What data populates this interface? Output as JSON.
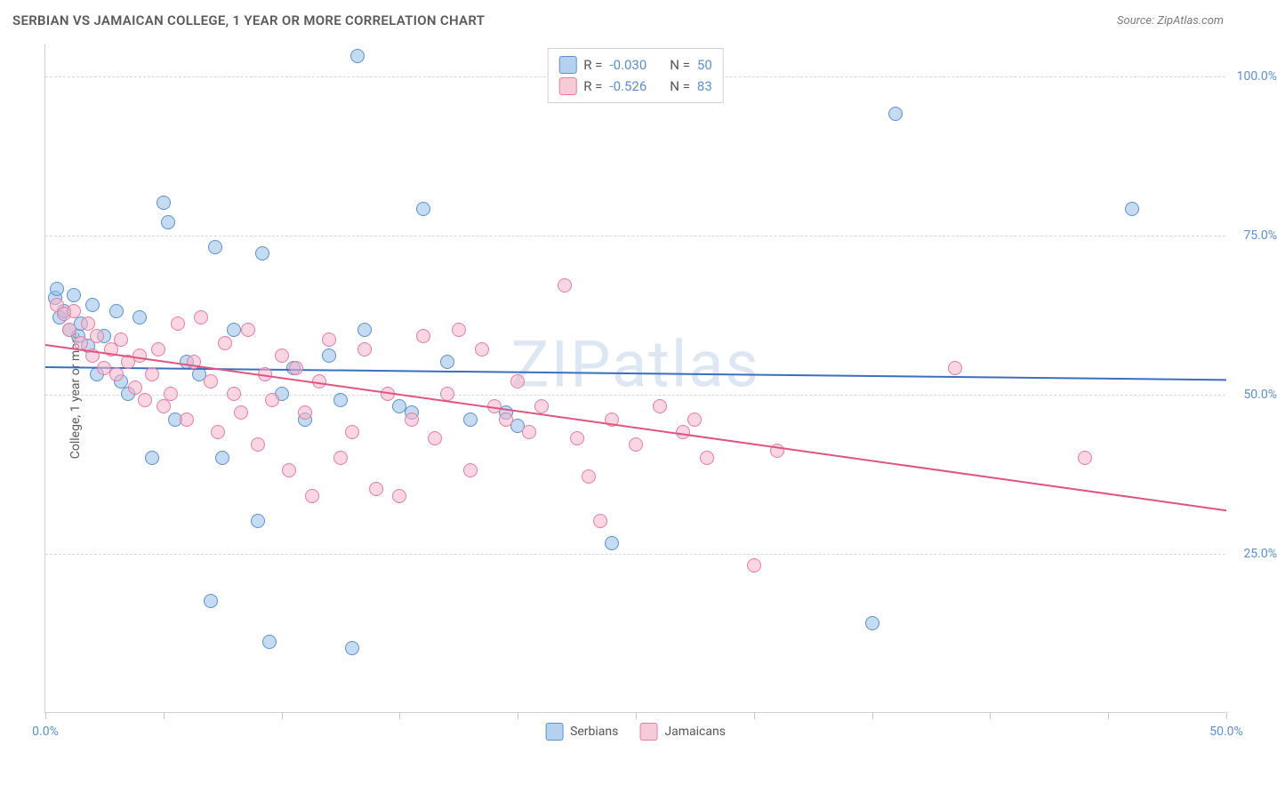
{
  "title": "SERBIAN VS JAMAICAN COLLEGE, 1 YEAR OR MORE CORRELATION CHART",
  "source": "Source: ZipAtlas.com",
  "ylabel": "College, 1 year or more",
  "watermark": "ZIPatlas",
  "chart": {
    "type": "scatter",
    "xlim": [
      0,
      50
    ],
    "ylim": [
      0,
      105
    ],
    "x_ticks": [
      0,
      5,
      10,
      15,
      20,
      25,
      30,
      35,
      40,
      45,
      50
    ],
    "x_tick_labels": {
      "0": "0.0%",
      "50": "50.0%"
    },
    "y_gridlines": [
      25,
      50,
      75,
      100
    ],
    "y_tick_labels": {
      "25": "25.0%",
      "50": "50.0%",
      "75": "75.0%",
      "100": "100.0%"
    },
    "background_color": "#ffffff",
    "grid_color": "#d8d8d8",
    "axis_color": "#d0d0d0",
    "marker_size": 16,
    "series": [
      {
        "name": "Serbians",
        "color_fill": "rgba(150,190,232,0.55)",
        "color_stroke": "#5b8fd6",
        "r": "-0.030",
        "n": "50",
        "regression": {
          "x1": 0,
          "y1": 54.5,
          "x2": 50,
          "y2": 52.5,
          "color": "#3b6fc0",
          "width": 2
        },
        "points": [
          [
            0.4,
            65
          ],
          [
            0.5,
            66.5
          ],
          [
            0.6,
            62
          ],
          [
            0.8,
            63
          ],
          [
            1.0,
            60
          ],
          [
            1.2,
            65.5
          ],
          [
            1.4,
            59
          ],
          [
            1.5,
            61
          ],
          [
            1.8,
            57.5
          ],
          [
            2.0,
            64
          ],
          [
            2.2,
            53
          ],
          [
            2.5,
            59
          ],
          [
            3.0,
            63
          ],
          [
            3.2,
            52
          ],
          [
            3.5,
            50
          ],
          [
            4.0,
            62
          ],
          [
            4.5,
            40
          ],
          [
            5.0,
            80
          ],
          [
            5.2,
            77
          ],
          [
            5.5,
            46
          ],
          [
            6.0,
            55
          ],
          [
            6.5,
            53
          ],
          [
            7.0,
            17.5
          ],
          [
            7.2,
            73
          ],
          [
            7.5,
            40
          ],
          [
            8.0,
            60
          ],
          [
            9.0,
            30
          ],
          [
            9.2,
            72
          ],
          [
            9.5,
            11
          ],
          [
            10.0,
            50
          ],
          [
            10.5,
            54
          ],
          [
            11.0,
            46
          ],
          [
            12.0,
            56
          ],
          [
            12.5,
            49
          ],
          [
            13.0,
            10
          ],
          [
            13.2,
            103
          ],
          [
            13.5,
            60
          ],
          [
            15.0,
            48
          ],
          [
            15.5,
            47
          ],
          [
            16.0,
            79
          ],
          [
            17.0,
            55
          ],
          [
            18.0,
            46
          ],
          [
            19.5,
            47
          ],
          [
            20.0,
            45
          ],
          [
            24.0,
            26.5
          ],
          [
            35.0,
            14
          ],
          [
            36.0,
            94
          ],
          [
            46.0,
            79
          ]
        ]
      },
      {
        "name": "Jamaicans",
        "color_fill": "rgba(244,180,200,0.55)",
        "color_stroke": "#e87ca0",
        "r": "-0.526",
        "n": "83",
        "regression": {
          "x1": 0,
          "y1": 58,
          "x2": 50,
          "y2": 32,
          "color": "#e05580",
          "width": 2
        },
        "points": [
          [
            0.5,
            64
          ],
          [
            0.8,
            62.5
          ],
          [
            1.0,
            60
          ],
          [
            1.2,
            63
          ],
          [
            1.5,
            58
          ],
          [
            1.8,
            61
          ],
          [
            2.0,
            56
          ],
          [
            2.2,
            59
          ],
          [
            2.5,
            54
          ],
          [
            2.8,
            57
          ],
          [
            3.0,
            53
          ],
          [
            3.2,
            58.5
          ],
          [
            3.5,
            55
          ],
          [
            3.8,
            51
          ],
          [
            4.0,
            56
          ],
          [
            4.2,
            49
          ],
          [
            4.5,
            53
          ],
          [
            4.8,
            57
          ],
          [
            5.0,
            48
          ],
          [
            5.3,
            50
          ],
          [
            5.6,
            61
          ],
          [
            6.0,
            46
          ],
          [
            6.3,
            55
          ],
          [
            6.6,
            62
          ],
          [
            7.0,
            52
          ],
          [
            7.3,
            44
          ],
          [
            7.6,
            58
          ],
          [
            8.0,
            50
          ],
          [
            8.3,
            47
          ],
          [
            8.6,
            60
          ],
          [
            9.0,
            42
          ],
          [
            9.3,
            53
          ],
          [
            9.6,
            49
          ],
          [
            10.0,
            56
          ],
          [
            10.3,
            38
          ],
          [
            10.6,
            54
          ],
          [
            11.0,
            47
          ],
          [
            11.3,
            34
          ],
          [
            11.6,
            52
          ],
          [
            12.0,
            58.5
          ],
          [
            12.5,
            40
          ],
          [
            13.0,
            44
          ],
          [
            13.5,
            57
          ],
          [
            14.0,
            35
          ],
          [
            14.5,
            50
          ],
          [
            15.0,
            34
          ],
          [
            15.5,
            46
          ],
          [
            16.0,
            59
          ],
          [
            16.5,
            43
          ],
          [
            17.0,
            50
          ],
          [
            17.5,
            60
          ],
          [
            18.0,
            38
          ],
          [
            18.5,
            57
          ],
          [
            19.0,
            48
          ],
          [
            19.5,
            46
          ],
          [
            20.0,
            52
          ],
          [
            20.5,
            44
          ],
          [
            21.0,
            48
          ],
          [
            22.0,
            67
          ],
          [
            22.5,
            43
          ],
          [
            23.0,
            37
          ],
          [
            23.5,
            30
          ],
          [
            24.0,
            46
          ],
          [
            25.0,
            42
          ],
          [
            26.0,
            48
          ],
          [
            27.0,
            44
          ],
          [
            27.5,
            46
          ],
          [
            28.0,
            40
          ],
          [
            30.0,
            23
          ],
          [
            31.0,
            41
          ],
          [
            38.5,
            54
          ],
          [
            44.0,
            40
          ]
        ]
      }
    ],
    "legend_top": {
      "r_label": "R =",
      "n_label": "N ="
    },
    "legend_bottom": [
      {
        "swatch": "blue",
        "label": "Serbians"
      },
      {
        "swatch": "pink",
        "label": "Jamaicans"
      }
    ]
  }
}
